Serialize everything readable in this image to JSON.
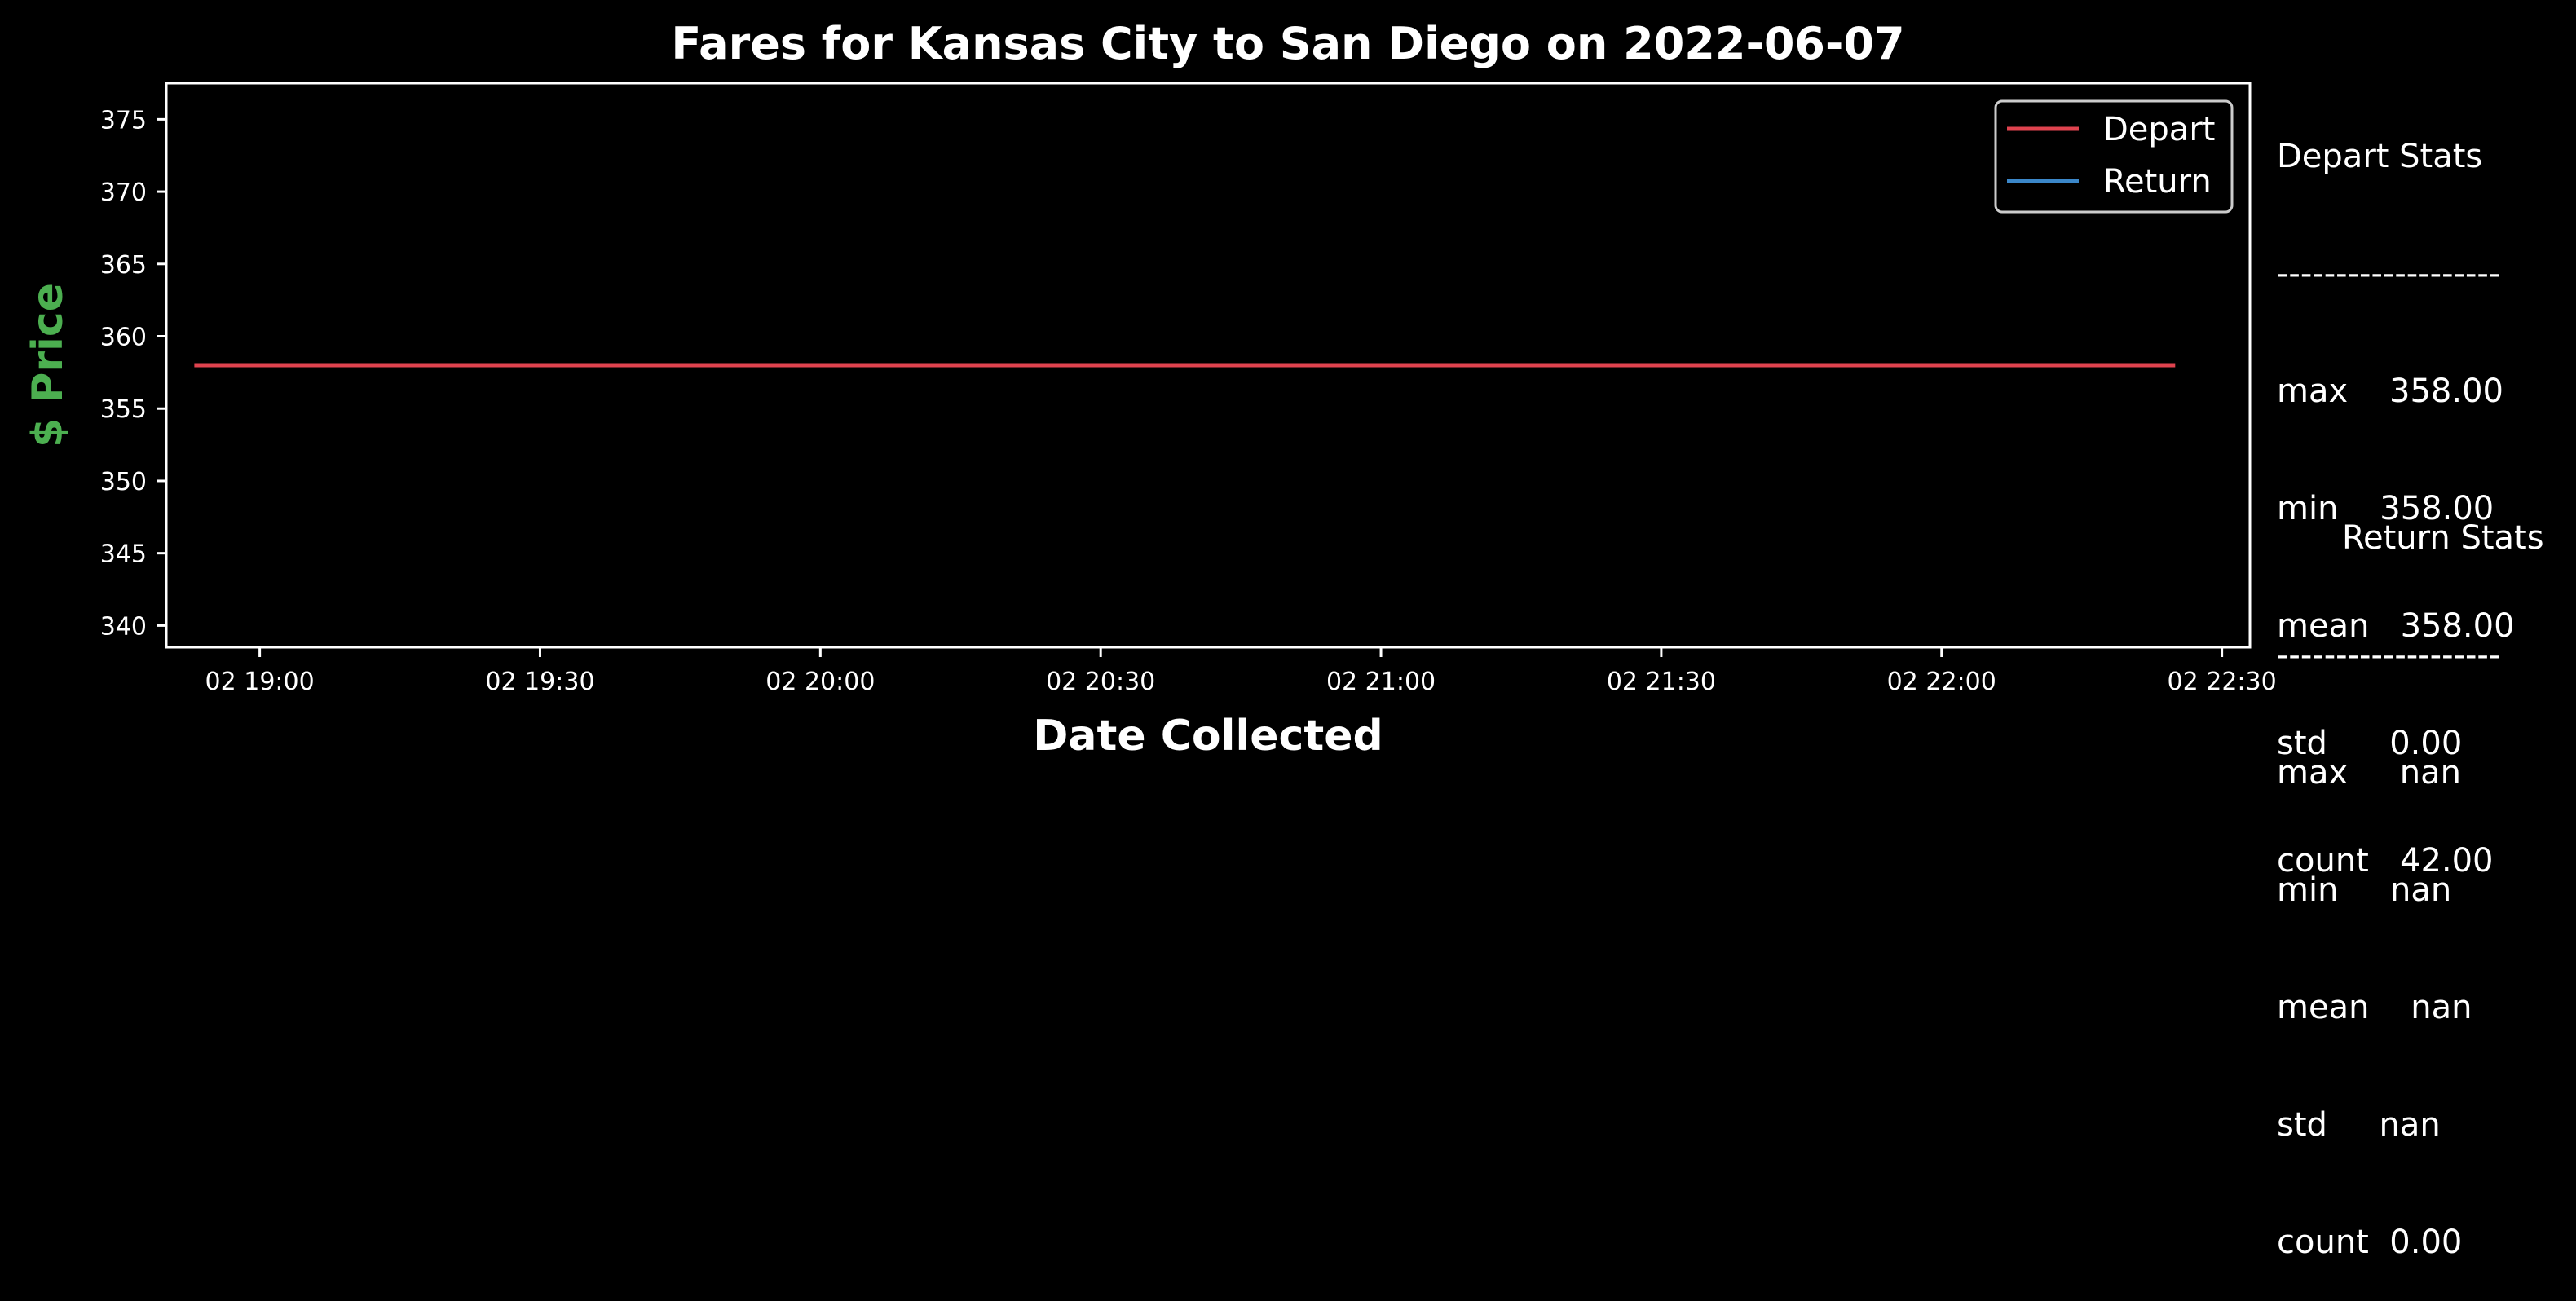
{
  "chart_data": {
    "type": "line",
    "title": "Fares for Kansas City to San Diego on 2022-06-07",
    "xlabel": "Date Collected",
    "ylabel": "$ Price",
    "x_ticks": [
      "02 19:00",
      "02 19:30",
      "02 20:00",
      "02 20:30",
      "02 21:00",
      "02 21:30",
      "02 22:00",
      "02 22:30"
    ],
    "x_range": [
      "2022-06-02 18:50",
      "2022-06-02 22:33"
    ],
    "y_ticks": [
      340,
      345,
      350,
      355,
      360,
      365,
      370,
      375
    ],
    "ylim": [
      338.5,
      377.5
    ],
    "grid": false,
    "legend": "top-right",
    "series": [
      {
        "name": "Depart",
        "color": "#e0434f",
        "x": [
          "2022-06-02 18:53",
          "2022-06-02 22:25"
        ],
        "values": [
          358,
          358
        ]
      },
      {
        "name": "Return",
        "color": "#3b87c9",
        "x": [],
        "values": []
      }
    ]
  },
  "depart_stats": {
    "heading": "Depart Stats",
    "divider": "-------------------",
    "rows": [
      "max    358.00",
      "min    358.00",
      "mean   358.00",
      "std      0.00",
      "count   42.00"
    ]
  },
  "return_stats": {
    "heading": "Return Stats",
    "divider": "-------------------",
    "rows": [
      "max     nan",
      "min     nan",
      "mean    nan",
      "std     nan",
      "count  0.00"
    ]
  },
  "colors": {
    "background": "#000000",
    "axis": "#ffffff",
    "ylabel": "#4caf50"
  }
}
